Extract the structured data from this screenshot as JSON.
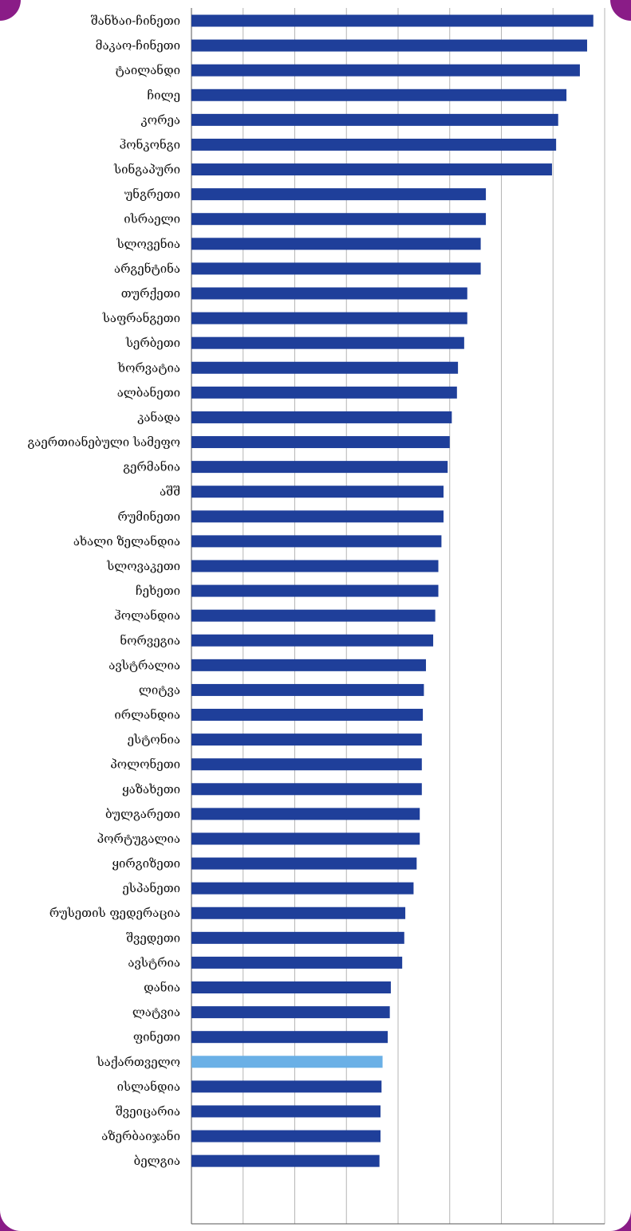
{
  "chart_data": {
    "type": "bar",
    "orientation": "horizontal",
    "categories": [
      "შანხაი-ჩინეთი",
      "მაკაო-ჩინეთი",
      "ტაილანდი",
      "ჩილე",
      "კორეა",
      "ჰონკონგი",
      "სინგაპური",
      "უნგრეთი",
      "ისრაელი",
      "სლოვენია",
      "არგენტინა",
      "თურქეთი",
      "საფრანგეთი",
      "სერბეთი",
      "ხორვატია",
      "ალბანეთი",
      "კანადა",
      "გაერთიანებული სამეფო",
      "გერმანია",
      "აშშ",
      "რუმინეთი",
      "ახალი ზელანდია",
      "სლოვაკეთი",
      "ჩეხეთი",
      "ჰოლანდია",
      "ნორვეგია",
      "ავსტრალია",
      "ლიტვა",
      "ირლანდია",
      "ესტონია",
      "პოლონეთი",
      "ყაზახეთი",
      "ბულგარეთი",
      "პორტუგალია",
      "ყირგიზეთი",
      "ესპანეთი",
      "რუსეთის ფედერაცია",
      "შვედეთი",
      "ავსტრია",
      "დანია",
      "ლატვია",
      "ფინეთი",
      "საქართველო",
      "ისლანდია",
      "შვეიცარია",
      "აზერბაიჯანი",
      "ბელგია"
    ],
    "values": [
      38.9,
      38.3,
      37.6,
      36.3,
      35.5,
      35.3,
      34.9,
      28.5,
      28.5,
      28.0,
      28.0,
      26.7,
      26.7,
      26.4,
      25.8,
      25.7,
      25.2,
      25.0,
      24.8,
      24.4,
      24.4,
      24.2,
      23.9,
      23.9,
      23.6,
      23.4,
      22.7,
      22.5,
      22.4,
      22.3,
      22.3,
      22.3,
      22.1,
      22.1,
      21.8,
      21.5,
      20.7,
      20.6,
      20.4,
      19.3,
      19.2,
      19.0,
      18.5,
      18.4,
      18.3,
      18.3,
      18.2
    ],
    "highlight_category": "საქართველო",
    "xlim": [
      0,
      40
    ],
    "xticks": [
      0,
      5,
      10,
      15,
      20,
      25,
      30,
      35,
      40
    ],
    "xtick_labels": [
      "0.0",
      "5.0",
      "10.0",
      "15.0",
      "20.0",
      "25.0",
      "30.0",
      "35.0",
      "40.0"
    ],
    "grid": "vertical",
    "title": "",
    "xlabel": "",
    "ylabel": "",
    "colors": {
      "bar": "#1f3f9a",
      "bar_highlight": "#6ab0e6",
      "grid": "#b5b5b5",
      "frame": "#8a1c87"
    }
  }
}
